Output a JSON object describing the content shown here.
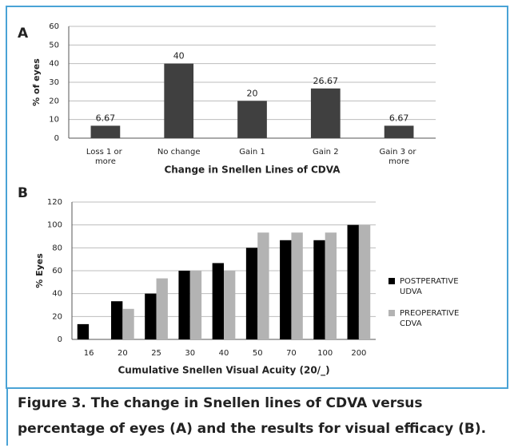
{
  "caption": [
    "Figure 3.  The change in Snellen lines of CDVA versus",
    "percentage of eyes (A) and the results for visual efficacy (B)."
  ],
  "chart_data": [
    {
      "type": "bar",
      "label": "A",
      "ylabel": "% of eyes",
      "xlabel": "Change in Snellen Lines of CDVA",
      "categories": [
        "Loss 1 or more",
        "No change",
        "Gain 1",
        "Gain 2",
        "Gain 3 or more"
      ],
      "values": [
        6.67,
        40,
        20,
        26.67,
        6.67
      ],
      "color": "#404040",
      "ylim": [
        0,
        60
      ],
      "yticks": [
        0,
        10,
        20,
        30,
        40,
        50,
        60
      ],
      "grid": true
    },
    {
      "type": "grouped_bar",
      "label": "B",
      "ylabel": "% Eyes",
      "xlabel": "Cumulative Snellen Visual Acuity (20/_)",
      "categories": [
        "16",
        "20",
        "25",
        "30",
        "40",
        "50",
        "70",
        "100",
        "200"
      ],
      "series": [
        {
          "name": "POSTPERATIVE UDVA",
          "color": "#000000",
          "values": [
            13.33,
            33.33,
            40,
            60,
            66.67,
            80,
            86.67,
            86.67,
            100
          ]
        },
        {
          "name": "PREOPERATIVE CDVA",
          "color": "#b3b3b3",
          "values": [
            0,
            26.67,
            53.33,
            60,
            60,
            93.33,
            93.33,
            93.33,
            100
          ]
        }
      ],
      "ylim": [
        0,
        120
      ],
      "yticks": [
        0,
        20,
        40,
        60,
        80,
        100,
        120
      ],
      "grid": true,
      "legend": "right"
    }
  ]
}
